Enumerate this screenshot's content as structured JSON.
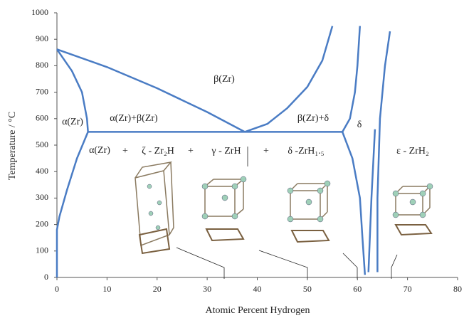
{
  "chart_data": {
    "type": "line",
    "x_label": "Atomic Percent Hydrogen",
    "y_label": "Temperature / °C",
    "color": "#4a7cc4",
    "xlim": [
      0,
      80
    ],
    "xticks": [
      0,
      10,
      20,
      30,
      40,
      50,
      60,
      70,
      80
    ],
    "ylim": [
      0,
      1000
    ],
    "yticks": [
      0,
      100,
      200,
      300,
      400,
      500,
      600,
      700,
      800,
      900,
      1000
    ],
    "series": [
      {
        "x": [
          0,
          10,
          20,
          30,
          37.5
        ],
        "values": [
          862,
          795,
          715,
          625,
          550
        ]
      },
      {
        "x": [
          37.5,
          42,
          46,
          50,
          53,
          55
        ],
        "values": [
          550,
          580,
          640,
          720,
          820,
          950
        ]
      },
      {
        "x": [
          0,
          3,
          5,
          6,
          6.2
        ],
        "values": [
          862,
          780,
          700,
          600,
          550
        ]
      },
      {
        "x": [
          6.2,
          4,
          2,
          0.5,
          0,
          0
        ],
        "values": [
          550,
          450,
          330,
          230,
          180,
          0
        ]
      },
      {
        "x": [
          6.2,
          57
        ],
        "values": [
          550,
          550
        ]
      },
      {
        "x": [
          57,
          58.5,
          59.5,
          60,
          60.5
        ],
        "values": [
          550,
          600,
          700,
          800,
          950
        ]
      },
      {
        "x": [
          57,
          59,
          60.5,
          61,
          61.5
        ],
        "values": [
          550,
          450,
          300,
          150,
          10
        ]
      },
      {
        "x": [
          62.2,
          62.8,
          63.5
        ],
        "values": [
          20,
          300,
          560
        ]
      },
      {
        "x": [
          64,
          64,
          64.5,
          65.5,
          66.5
        ],
        "values": [
          20,
          300,
          600,
          800,
          930
        ]
      }
    ],
    "annotations": [
      "α(Zr)",
      "α(Zr)+β(Zr)",
      "β(Zr)",
      "β(Zr)+δ",
      "δ",
      "α(Zr)",
      "+",
      "ζ - Zr₂H",
      "+",
      "γ - ZrH",
      "+",
      "δ -ZrH₁.₅",
      "ε - ZrH₂"
    ]
  }
}
